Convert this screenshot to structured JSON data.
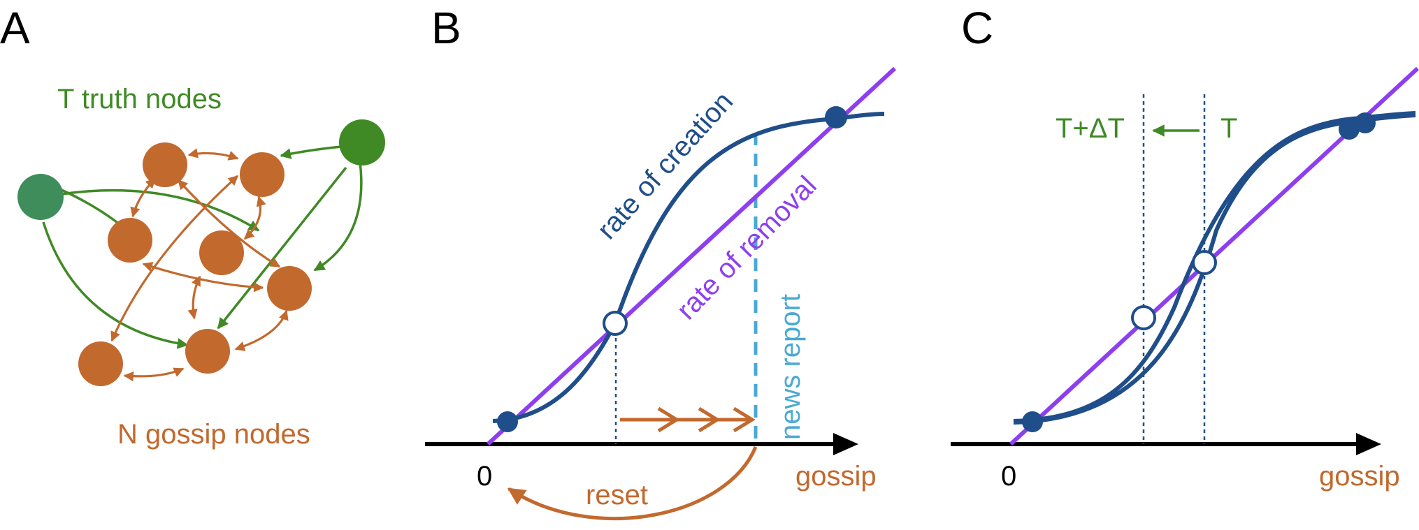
{
  "colors": {
    "truth": "#3f8a25",
    "truth_node": "#3e8d5b",
    "gossip": "#c2692e",
    "creation": "#1f4e8a",
    "removal": "#8d3ff0",
    "news": "#49a9d3",
    "axis": "#000000"
  },
  "panel_a": {
    "letter": "A",
    "truth_label": "T truth nodes",
    "gossip_label": "N gossip nodes"
  },
  "panel_b": {
    "letter": "B",
    "creation_label": "rate of creation",
    "removal_label": "rate of removal",
    "news_label": "news report",
    "reset_label": "reset",
    "origin_label": "0",
    "axis_label": "gossip"
  },
  "panel_c": {
    "letter": "C",
    "shifted_label": "T+ΔT",
    "original_label": "T",
    "origin_label": "0",
    "axis_label": "gossip"
  }
}
